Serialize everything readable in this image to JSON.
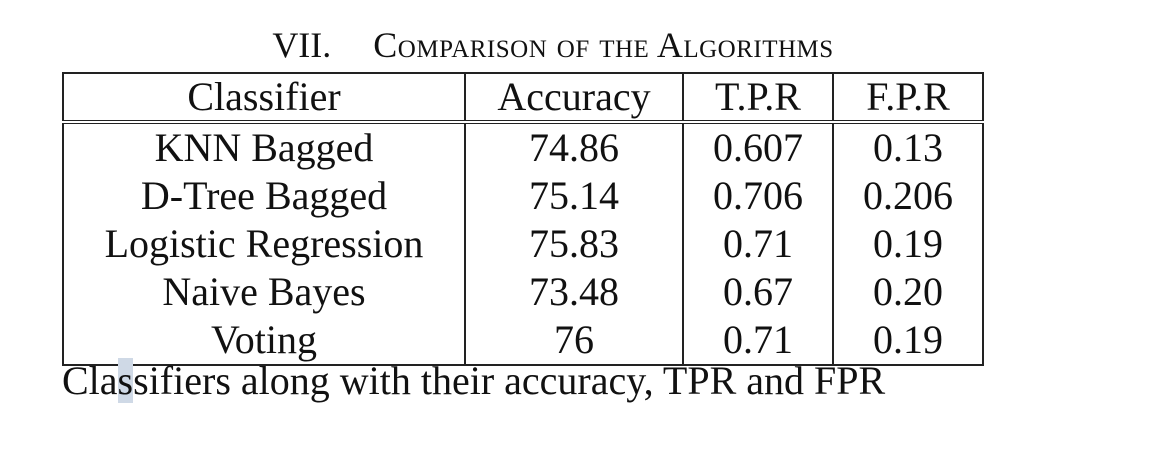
{
  "table": {
    "number": "VII.",
    "title": "Comparison of the Algorithms",
    "headers": [
      "Classifier",
      "Accuracy",
      "T.P.R",
      "F.P.R"
    ],
    "rows": [
      [
        "KNN Bagged",
        "74.86",
        "0.607",
        "0.13"
      ],
      [
        "D-Tree Bagged",
        "75.14",
        "0.706",
        "0.206"
      ],
      [
        "Logistic Regression",
        "75.83",
        "0.71",
        "0.19"
      ],
      [
        "Naive Bayes",
        "73.48",
        "0.67",
        "0.20"
      ],
      [
        "Voting",
        "76",
        "0.71",
        "0.19"
      ]
    ],
    "caption": {
      "before_selection": "Cla",
      "selected": "s",
      "after_selection": "sifiers along with their accuracy, TPR and FPR"
    }
  }
}
